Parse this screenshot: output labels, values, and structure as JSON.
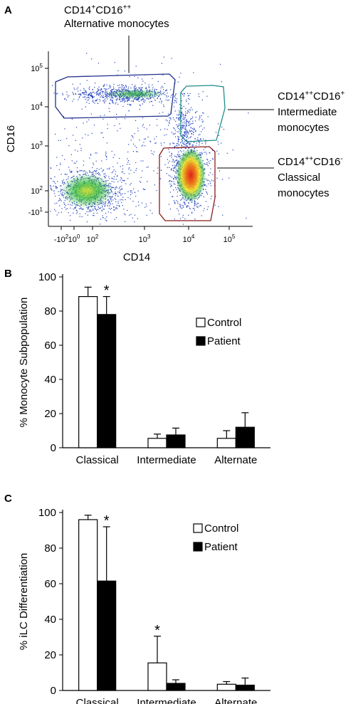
{
  "panels": {
    "a": {
      "letter": "A",
      "annotations": {
        "alternative": {
          "line1": "CD14",
          "sup1": "+",
          "mid1": "CD16",
          "sup2": "++",
          "line2": "Alternative monocytes"
        },
        "intermediate": {
          "line1": "CD14",
          "sup1": "++",
          "mid1": "CD16",
          "sup2": "+",
          "line2": "Intermediate",
          "line3": "monocytes"
        },
        "classical": {
          "line1": "CD14",
          "sup1": "++",
          "mid1": "CD16",
          "sup2": "-",
          "line2": "Classical",
          "line3": "monocytes"
        }
      }
    },
    "b": {
      "letter": "B"
    },
    "c": {
      "letter": "C"
    }
  },
  "chart_data": [
    {
      "type": "scatter",
      "panel": "A",
      "xlabel": "CD14",
      "ylabel": "CD16",
      "xscale": "biexponential",
      "yscale": "biexponential",
      "x_ticks": [
        {
          "base": "-10",
          "exp": "2"
        },
        {
          "base": "10",
          "exp": "0"
        },
        {
          "base": "10",
          "exp": "2"
        },
        {
          "base": "10",
          "exp": "3"
        },
        {
          "base": "10",
          "exp": "4"
        },
        {
          "base": "10",
          "exp": "5"
        }
      ],
      "y_ticks": [
        {
          "base": "-10",
          "exp": "1"
        },
        {
          "base": "10",
          "exp": "2"
        },
        {
          "base": "10",
          "exp": "3"
        },
        {
          "base": "10",
          "exp": "4"
        },
        {
          "base": "10",
          "exp": "5"
        }
      ],
      "populations": [
        {
          "name": "Alternative monocytes",
          "gate_color": "#1f2f8a"
        },
        {
          "name": "Intermediate monocytes",
          "gate_color": "#1f8f8a"
        },
        {
          "name": "Classical monocytes",
          "gate_color": "#8b1a1a"
        }
      ]
    },
    {
      "type": "bar",
      "panel": "B",
      "ylabel": "% Monocyte Subpopulation",
      "categories": [
        "Classical",
        "Intermediate",
        "Alternate"
      ],
      "ylim": [
        0,
        100
      ],
      "yticks": [
        0,
        20,
        40,
        60,
        80,
        100
      ],
      "series": [
        {
          "name": "Control",
          "color": "#ffffff",
          "values": [
            88.5,
            5.5,
            5.5
          ],
          "errors": [
            5.5,
            2.5,
            4.5
          ]
        },
        {
          "name": "Patient",
          "color": "#000000",
          "values": [
            78,
            7.5,
            12
          ],
          "errors": [
            10.5,
            4,
            8.5
          ]
        }
      ],
      "significance": [
        {
          "category": "Classical",
          "series": "Patient",
          "mark": "*"
        }
      ],
      "legend_position": "right"
    },
    {
      "type": "bar",
      "panel": "C",
      "ylabel": "% iLC Differentiation",
      "categories": [
        "Classical",
        "Intermediate",
        "Alternate"
      ],
      "ylim": [
        0,
        100
      ],
      "yticks": [
        0,
        20,
        40,
        60,
        80,
        100
      ],
      "series": [
        {
          "name": "Control",
          "color": "#ffffff",
          "values": [
            96,
            15.5,
            3.5
          ],
          "errors": [
            2.5,
            15,
            1.5
          ]
        },
        {
          "name": "Patient",
          "color": "#000000",
          "values": [
            61.5,
            4,
            3
          ],
          "errors": [
            30.5,
            2,
            4
          ]
        }
      ],
      "significance": [
        {
          "category": "Classical",
          "series": "Patient",
          "mark": "*"
        },
        {
          "category": "Intermediate",
          "series": "Control",
          "mark": "*"
        }
      ],
      "legend_position": "top-right"
    }
  ]
}
